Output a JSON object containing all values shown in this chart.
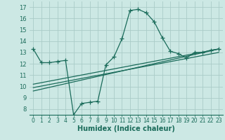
{
  "title": "",
  "xlabel": "Humidex (Indice chaleur)",
  "bg_color": "#cce8e4",
  "grid_color": "#aaccc8",
  "line_color": "#1a6b5a",
  "xlim": [
    -0.5,
    23.5
  ],
  "ylim": [
    7.5,
    17.5
  ],
  "xticks": [
    0,
    1,
    2,
    3,
    4,
    5,
    6,
    7,
    8,
    9,
    10,
    11,
    12,
    13,
    14,
    15,
    16,
    17,
    18,
    19,
    20,
    21,
    22,
    23
  ],
  "yticks": [
    8,
    9,
    10,
    11,
    12,
    13,
    14,
    15,
    16,
    17
  ],
  "series1_x": [
    0,
    1,
    2,
    3,
    4,
    5,
    6,
    7,
    8,
    9,
    10,
    11,
    12,
    13,
    14,
    15,
    16,
    17,
    18,
    19,
    20,
    21,
    22,
    23
  ],
  "series1_y": [
    13.3,
    12.1,
    12.1,
    12.2,
    12.3,
    7.5,
    8.5,
    8.6,
    8.7,
    11.9,
    12.6,
    14.2,
    16.7,
    16.8,
    16.5,
    15.7,
    14.3,
    13.1,
    12.9,
    12.5,
    13.0,
    13.0,
    13.2,
    13.3
  ],
  "series2_x": [
    0,
    23
  ],
  "series2_y": [
    9.6,
    13.3
  ],
  "series3_x": [
    0,
    23
  ],
  "series3_y": [
    9.9,
    13.0
  ],
  "series4_x": [
    0,
    23
  ],
  "series4_y": [
    10.2,
    13.3
  ],
  "marker": "+",
  "markersize": 4,
  "linewidth": 0.9
}
